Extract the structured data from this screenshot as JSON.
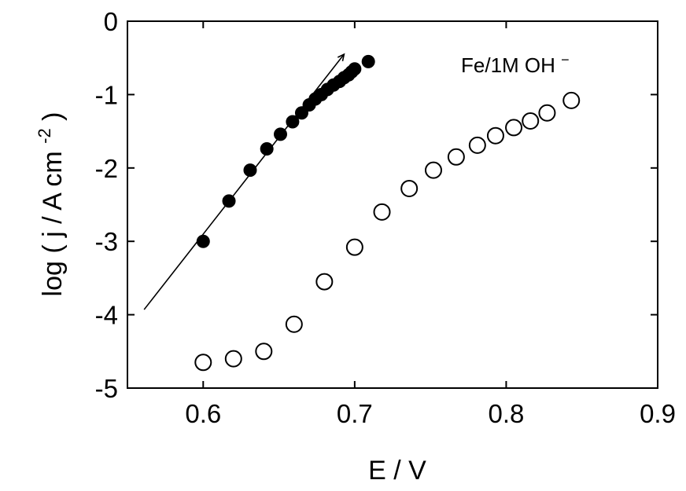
{
  "chart_data": {
    "type": "scatter",
    "title": "",
    "xlabel": "E / V",
    "ylabel_main": "log ( j / A cm",
    "ylabel_exp": "-2",
    "ylabel_close": ")",
    "xlim": [
      0.55,
      0.9
    ],
    "ylim": [
      -5,
      0
    ],
    "xticks": [
      0.6,
      0.7,
      0.8,
      0.9
    ],
    "xtick_labels": [
      "0.6",
      "0.7",
      "0.8",
      "0.9"
    ],
    "yticks": [
      0,
      -1,
      -2,
      -3,
      -4,
      -5
    ],
    "ytick_labels": [
      "0",
      "-1",
      "-2",
      "-3",
      "-4",
      "-5"
    ],
    "grid": false,
    "legend": "none",
    "annotation": "Fe/1M OH",
    "annotation_sup": "−",
    "series": [
      {
        "marker": "filled-circle",
        "x": [
          0.6,
          0.617,
          0.631,
          0.642,
          0.651,
          0.659,
          0.665,
          0.67,
          0.674,
          0.678,
          0.682,
          0.686,
          0.69,
          0.693,
          0.696,
          0.698,
          0.7,
          0.709
        ],
        "y": [
          -3.0,
          -2.45,
          -2.03,
          -1.74,
          -1.54,
          -1.37,
          -1.25,
          -1.14,
          -1.06,
          -1.0,
          -0.93,
          -0.87,
          -0.82,
          -0.77,
          -0.73,
          -0.69,
          -0.65,
          -0.55
        ]
      },
      {
        "marker": "open-circle",
        "x": [
          0.6,
          0.62,
          0.64,
          0.66,
          0.68,
          0.7,
          0.718,
          0.736,
          0.752,
          0.767,
          0.781,
          0.793,
          0.805,
          0.816,
          0.827,
          0.843
        ],
        "y": [
          -4.65,
          -4.6,
          -4.5,
          -4.13,
          -3.55,
          -3.08,
          -2.6,
          -2.28,
          -2.03,
          -1.85,
          -1.69,
          -1.56,
          -1.45,
          -1.36,
          -1.25,
          -1.08
        ]
      }
    ],
    "fit_line": {
      "x": [
        0.561,
        0.693
      ],
      "y": [
        -3.93,
        -0.45
      ]
    }
  }
}
